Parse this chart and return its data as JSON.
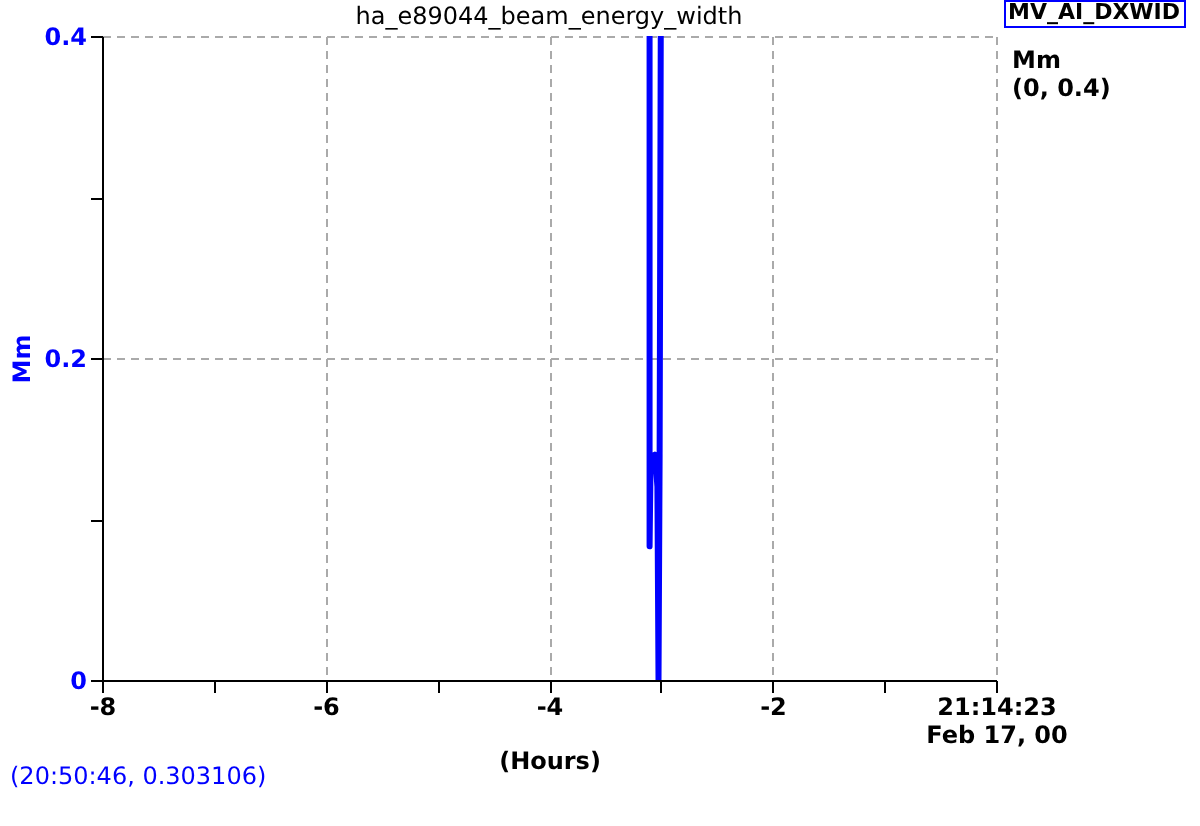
{
  "chart_data": {
    "type": "line",
    "title": "ha_e89044_beam_energy_width",
    "xlabel": "(Hours)",
    "ylabel": "Mm",
    "series": [
      {
        "name": "MV_AI_DXWID",
        "color": "#0000ff",
        "x": [
          -3.1,
          -3.1,
          -3.09,
          -3.07,
          -3.05,
          -3.03,
          -3.02,
          -3.01,
          -3.0
        ],
        "values": [
          0.4,
          0.083,
          0.14,
          0.13,
          0.14,
          0.12,
          0.0,
          0.14,
          0.4
        ]
      }
    ],
    "xlim": [
      -8,
      0
    ],
    "xticks": [
      -8,
      {
        "value": -7,
        "label": null
      },
      -6,
      {
        "value": -5,
        "label": null
      },
      -4,
      {
        "value": -3,
        "label": null
      },
      -2,
      {
        "value": -1,
        "label": null
      },
      {
        "value": 0,
        "label": "21:14:23\nFeb 17, 00"
      }
    ],
    "ylim": [
      0,
      0.4
    ],
    "yticks": [
      0,
      {
        "value": 0.1,
        "label": null
      },
      0.2,
      {
        "value": 0.3,
        "label": null
      },
      0.4
    ],
    "grid": true,
    "legend": "top right",
    "line_style": "solid",
    "marker": "none",
    "annotations": [
      "Mm",
      "(0, 0.4)",
      "(20:50:46, 0.303106)"
    ]
  }
}
